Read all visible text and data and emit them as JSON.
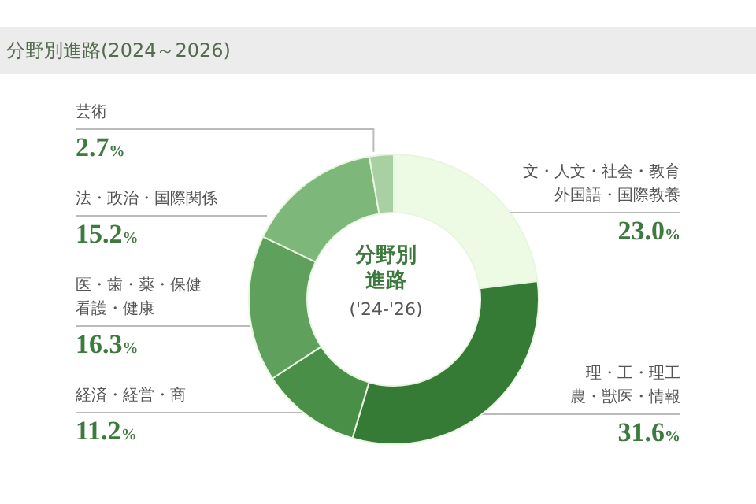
{
  "chart_data": {
    "type": "donut",
    "title": "分野別進路(2024～2026)",
    "annotations": [
      "分野別進路",
      "('24-'26)"
    ],
    "categories": [
      "文・人文・社会・教育外国語・国際教養",
      "理・工・理工農・獣医・情報",
      "経済・経営・商",
      "医・歯・薬・保健看護・健康",
      "法・政治・国際関係",
      "芸術"
    ],
    "values": [
      23.0,
      31.6,
      11.2,
      16.3,
      15.2,
      2.7
    ],
    "value_labels": [
      "23.0%",
      "31.6%",
      "11.2%",
      "16.3%",
      "15.2%",
      "2.7%"
    ],
    "colors": [
      "#eefbe4",
      "#357a35",
      "#4a8f48",
      "#5fa05c",
      "#7db77a",
      "#a8d0a3"
    ],
    "legend": false
  }
}
